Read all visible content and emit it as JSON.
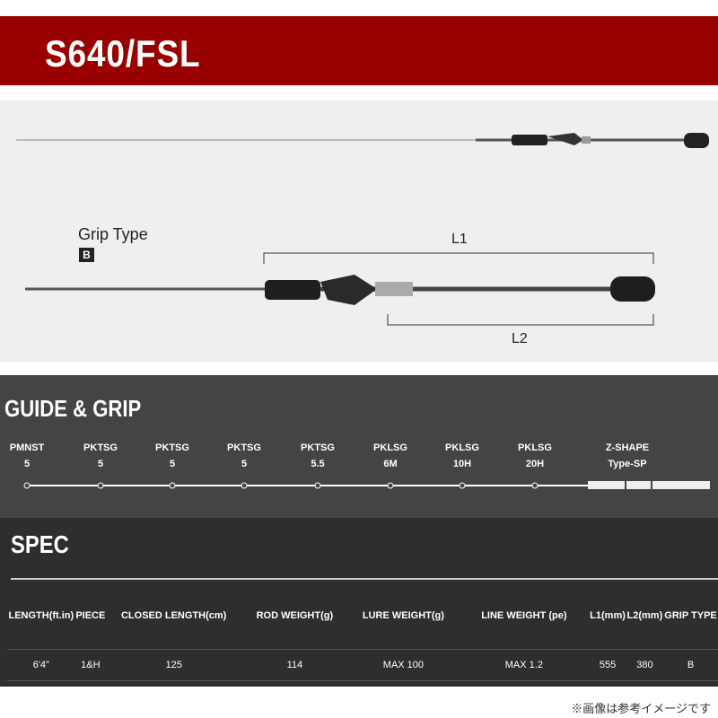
{
  "title": "S640/FSL",
  "photo": {
    "grip_type_label": "Grip Type",
    "grip_type_value": "B",
    "l1": "L1",
    "l2": "L2"
  },
  "guide": {
    "heading": "GUIDE & GRIP",
    "items": [
      {
        "name": "PMNST",
        "size": "5"
      },
      {
        "name": "PKTSG",
        "size": "5"
      },
      {
        "name": "PKTSG",
        "size": "5"
      },
      {
        "name": "PKTSG",
        "size": "5"
      },
      {
        "name": "PKTSG",
        "size": "5.5"
      },
      {
        "name": "PKLSG",
        "size": "6M"
      },
      {
        "name": "PKLSG",
        "size": "10H"
      },
      {
        "name": "PKLSG",
        "size": "20H"
      }
    ],
    "grip": {
      "name": "Z-SHAPE",
      "type": "Type-SP"
    }
  },
  "spec": {
    "heading": "SPEC",
    "headers": [
      "LENGTH(ft.in)",
      "PIECE",
      "CLOSED LENGTH(cm)",
      "ROD WEIGHT(g)",
      "LURE WEIGHT(g)",
      "LINE WEIGHT (pe)",
      "L1(mm)",
      "L2(mm)",
      "GRIP TYPE"
    ],
    "values": [
      "6'4\"",
      "1&H",
      "125",
      "114",
      "MAX 100",
      "MAX 1.2",
      "555",
      "380",
      "B"
    ]
  },
  "note": "※画像は参考イメージです",
  "colors": {
    "banner": "#990000",
    "guide_bg": "#444444",
    "spec_bg": "#2e2e2e"
  }
}
